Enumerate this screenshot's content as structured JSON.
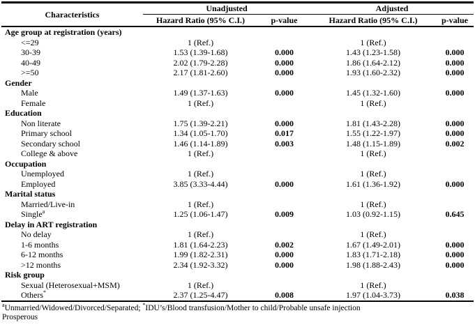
{
  "colors": {
    "text": "#000000",
    "background": "#ffffff",
    "rule": "#000000"
  },
  "table": {
    "headers": {
      "characteristics": "Characteristics",
      "group_unadjusted": "Unadjusted",
      "group_adjusted": "Adjusted",
      "hazard_ratio": "Hazard Ratio (95% C.I.)",
      "p_value": "p-value"
    },
    "sections": [
      {
        "label": "Age group at registration (years)",
        "rows": [
          {
            "label": "<=29",
            "sup": "",
            "unadjusted_hr": "1 (Ref.)",
            "unadjusted_p": "",
            "adjusted_hr": "1 (Ref.)",
            "adjusted_p": ""
          },
          {
            "label": "30-39",
            "sup": "",
            "unadjusted_hr": "1.53 (1.39-1.68)",
            "unadjusted_p": "0.000",
            "adjusted_hr": "1.43 (1.23-1.58)",
            "adjusted_p": "0.000"
          },
          {
            "label": "40-49",
            "sup": "",
            "unadjusted_hr": "2.02 (1.79-2.28)",
            "unadjusted_p": "0.000",
            "adjusted_hr": "1.86 (1.64-2.12)",
            "adjusted_p": "0.000"
          },
          {
            "label": ">=50",
            "sup": "",
            "unadjusted_hr": "2.17 (1.81-2.60)",
            "unadjusted_p": "0.000",
            "adjusted_hr": "1.93 (1.60-2.32)",
            "adjusted_p": "0.000"
          }
        ]
      },
      {
        "label": "Gender",
        "rows": [
          {
            "label": "Male",
            "sup": "",
            "unadjusted_hr": "1.49 (1.37-1.63)",
            "unadjusted_p": "0.000",
            "adjusted_hr": "1.45 (1.32-1.60)",
            "adjusted_p": "0.000"
          },
          {
            "label": "Female",
            "sup": "",
            "unadjusted_hr": "1 (Ref.)",
            "unadjusted_p": "",
            "adjusted_hr": "1 (Ref.)",
            "adjusted_p": ""
          }
        ]
      },
      {
        "label": "Education",
        "rows": [
          {
            "label": "Non literate",
            "sup": "",
            "unadjusted_hr": "1.75 (1.39-2.21)",
            "unadjusted_p": "0.000",
            "adjusted_hr": "1.81 (1.43-2.28)",
            "adjusted_p": "0.000"
          },
          {
            "label": "Primary school",
            "sup": "",
            "unadjusted_hr": "1.34 (1.05-1.70)",
            "unadjusted_p": "0.017",
            "adjusted_hr": "1.55 (1.22-1.97)",
            "adjusted_p": "0.000"
          },
          {
            "label": "Secondary school",
            "sup": "",
            "unadjusted_hr": "1.46 (1.14-1.89)",
            "unadjusted_p": "0.003",
            "adjusted_hr": "1.48 (1.15-1.89)",
            "adjusted_p": "0.002"
          },
          {
            "label": "College & above",
            "sup": "",
            "unadjusted_hr": "1 (Ref.)",
            "unadjusted_p": "",
            "adjusted_hr": "1 (Ref.)",
            "adjusted_p": ""
          }
        ]
      },
      {
        "label": "Occupation",
        "rows": [
          {
            "label": "Unemployed",
            "sup": "",
            "unadjusted_hr": "1 (Ref.)",
            "unadjusted_p": "",
            "adjusted_hr": "1 (Ref.)",
            "adjusted_p": ""
          },
          {
            "label": "Employed",
            "sup": "",
            "unadjusted_hr": "3.85 (3.33-4.44)",
            "unadjusted_p": "0.000",
            "adjusted_hr": "1.61 (1.36-1.92)",
            "adjusted_p": "0.000"
          }
        ]
      },
      {
        "label": "Marital status",
        "rows": [
          {
            "label": "Married/Live-in",
            "sup": "",
            "unadjusted_hr": "1 (Ref.)",
            "unadjusted_p": "",
            "adjusted_hr": "1 (Ref.)",
            "adjusted_p": ""
          },
          {
            "label": "Single",
            "sup": "a",
            "unadjusted_hr": "1.25 (1.06-1.47)",
            "unadjusted_p": "0.009",
            "adjusted_hr": "1.03 (0.92-1.15)",
            "adjusted_p": "0.645"
          }
        ]
      },
      {
        "label": "Delay in ART registration",
        "rows": [
          {
            "label": "No delay",
            "sup": "",
            "unadjusted_hr": "1 (Ref.)",
            "unadjusted_p": "",
            "adjusted_hr": "1 (Ref.)",
            "adjusted_p": ""
          },
          {
            "label": "1-6 months",
            "sup": "",
            "unadjusted_hr": "1.81 (1.64-2.23)",
            "unadjusted_p": "0.002",
            "adjusted_hr": "1.67 (1.49-2.01)",
            "adjusted_p": "0.000"
          },
          {
            "label": "6-12 months",
            "sup": "",
            "unadjusted_hr": "1.99 (1.82-2.31)",
            "unadjusted_p": "0.000",
            "adjusted_hr": "1.83 (1.71-2.18)",
            "adjusted_p": "0.000"
          },
          {
            "label": ">12 months",
            "sup": "",
            "unadjusted_hr": "2.34 (1.92-3.32)",
            "unadjusted_p": "0.000",
            "adjusted_hr": "1.98 (1.88-2.43)",
            "adjusted_p": "0.000"
          }
        ]
      },
      {
        "label": "Risk group",
        "rows": [
          {
            "label": "Sexual (Heterosexual+MSM)",
            "sup": "",
            "unadjusted_hr": "1 (Ref.)",
            "unadjusted_p": "",
            "adjusted_hr": "1 (Ref.)",
            "adjusted_p": ""
          },
          {
            "label": "Others",
            "sup": "*",
            "unadjusted_hr": "2.37 (1.25-4.47)",
            "unadjusted_p": "0.008",
            "adjusted_hr": "1.97 (1.04-3.73)",
            "adjusted_p": "0.038"
          }
        ]
      }
    ],
    "footnotes": {
      "line1_marker1": "a",
      "line1_text1": "Unmarried/Widowed/Divorced/Separated; ",
      "line1_marker2": "*",
      "line1_text2": "IDU’s/Blood transfusion/Mother to child/Probable unsafe injection",
      "line2": "Prosperous"
    }
  }
}
